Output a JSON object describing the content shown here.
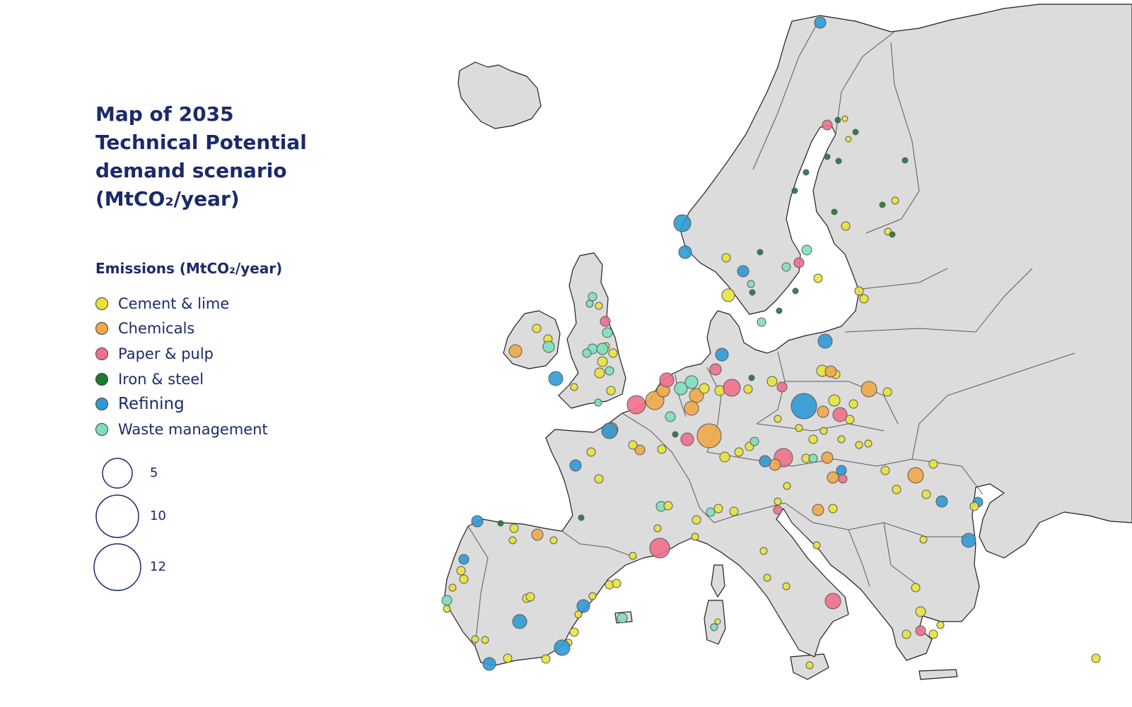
{
  "title_lines": [
    "Map of 2035",
    "Technical Potential",
    "demand scenario",
    "(MtCO₂/year)"
  ],
  "legend": {
    "title": "Emissions (MtCO₂/year)",
    "categories": [
      {
        "key": "cement",
        "label": "Cement & lime",
        "color": "#e9e337"
      },
      {
        "key": "chemicals",
        "label": "Chemicals",
        "color": "#f0a848"
      },
      {
        "key": "paper",
        "label": "Paper & pulp",
        "color": "#f0708a"
      },
      {
        "key": "iron",
        "label": "Iron & steel",
        "color": "#1a7a35"
      },
      {
        "key": "refining",
        "label": "Refining",
        "color": "#2e9ad5"
      },
      {
        "key": "waste",
        "label": "Waste management",
        "color": "#7de0bc"
      }
    ],
    "sizes": [
      {
        "label": "5",
        "value": 5
      },
      {
        "label": "10",
        "value": 10
      },
      {
        "label": "12",
        "value": 12
      }
    ]
  },
  "colors": {
    "land": "#dcdcdc",
    "coast": "#1f1f1f",
    "border": "#5a5a5a",
    "text": "#1b2a6b"
  }
}
